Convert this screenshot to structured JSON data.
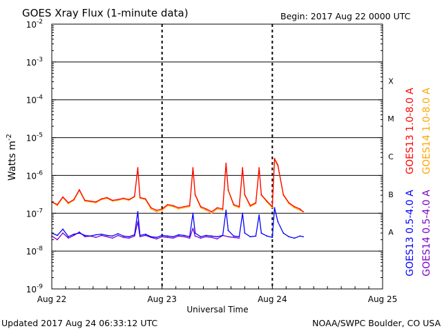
{
  "chart_data": {
    "type": "line",
    "title": "GOES Xray Flux (1-minute data)",
    "begin_text": "Begin:  2017 Aug 22 0000 UTC",
    "xlabel": "Universal Time",
    "ylabel_main": "Watts m",
    "ylabel_exp": "-2",
    "y_scale": "log",
    "ylim": [
      1e-09,
      0.01
    ],
    "xlim": [
      0,
      3
    ],
    "x_ticks": [
      {
        "value": 0,
        "label": "Aug 22"
      },
      {
        "value": 1,
        "label": "Aug 23"
      },
      {
        "value": 2,
        "label": "Aug 24"
      },
      {
        "value": 3,
        "label": "Aug 25"
      }
    ],
    "y_ticks": [
      {
        "exp": -9,
        "base": "10",
        "sup": "-9"
      },
      {
        "exp": -8,
        "base": "10",
        "sup": "-8"
      },
      {
        "exp": -7,
        "base": "10",
        "sup": "-7"
      },
      {
        "exp": -6,
        "base": "10",
        "sup": "-6"
      },
      {
        "exp": -5,
        "base": "10",
        "sup": "-5"
      },
      {
        "exp": -4,
        "base": "10",
        "sup": "-4"
      },
      {
        "exp": -3,
        "base": "10",
        "sup": "-3"
      },
      {
        "exp": -2,
        "base": "10",
        "sup": "-2"
      }
    ],
    "class_lines": [
      {
        "label": "A",
        "value": 1e-08
      },
      {
        "label": "B",
        "value": 1e-07
      },
      {
        "label": "C",
        "value": 1e-06
      },
      {
        "label": "M",
        "value": 1e-05
      },
      {
        "label": "X",
        "value": 0.0001
      }
    ],
    "extra_hlines": [
      0.001
    ],
    "day_lines": [
      1,
      2
    ],
    "legend": [
      {
        "text": "GOES13 1.0-8.0 A",
        "color": "#ff0000"
      },
      {
        "text": "GOES14 1.0-8.0 A",
        "color": "#ffa500"
      },
      {
        "text": "GOES13 0.5-4.0 A",
        "color": "#0000ff"
      },
      {
        "text": "GOES14 0.5-4.0 A",
        "color": "#7b00c8"
      }
    ],
    "series": [
      {
        "name": "GOES14 1.0-8.0 A",
        "color": "#ffa500",
        "x": [
          0,
          0.05,
          0.1,
          0.15,
          0.2,
          0.25,
          0.3,
          0.35,
          0.4,
          0.45,
          0.5,
          0.55,
          0.6,
          0.65,
          0.7,
          0.75,
          0.78,
          0.8,
          0.85,
          0.9,
          0.95,
          1.0,
          1.05,
          1.1,
          1.15,
          1.2,
          1.25,
          1.28,
          1.3,
          1.35,
          1.4,
          1.45,
          1.5,
          1.55,
          1.58,
          1.6,
          1.65,
          1.7,
          1.73,
          1.75,
          1.8,
          1.85,
          1.88,
          1.9,
          1.95,
          2.0,
          2.02,
          2.05,
          2.1,
          2.15,
          2.2,
          2.25,
          2.28
        ],
        "y": [
          2e-07,
          1.6e-07,
          2.6e-07,
          1.8e-07,
          2.2e-07,
          4e-07,
          2.1e-07,
          2e-07,
          1.9e-07,
          2.3e-07,
          2.5e-07,
          2.1e-07,
          2.2e-07,
          2.4e-07,
          2.2e-07,
          2.7e-07,
          1.5e-06,
          2.5e-07,
          2.3e-07,
          1.3e-07,
          1.1e-07,
          1.2e-07,
          1.6e-07,
          1.5e-07,
          1.3e-07,
          1.4e-07,
          1.5e-07,
          1.5e-06,
          3e-07,
          1.4e-07,
          1.2e-07,
          1e-07,
          1.3e-07,
          1.2e-07,
          2e-06,
          4e-07,
          1.6e-07,
          1.4e-07,
          1.5e-06,
          3e-07,
          1.5e-07,
          1.8e-07,
          1.5e-06,
          3e-07,
          2e-07,
          1.4e-07,
          2.5e-06,
          1.8e-06,
          3e-07,
          1.8e-07,
          1.4e-07,
          1.2e-07,
          1.1e-07
        ]
      },
      {
        "name": "GOES13 1.0-8.0 A",
        "color": "#ff0000",
        "x": [
          0,
          0.05,
          0.1,
          0.15,
          0.2,
          0.25,
          0.3,
          0.35,
          0.4,
          0.45,
          0.5,
          0.55,
          0.6,
          0.65,
          0.7,
          0.75,
          0.78,
          0.8,
          0.85,
          0.9,
          0.95,
          1.0,
          1.05,
          1.1,
          1.15,
          1.2,
          1.25,
          1.28,
          1.3,
          1.35,
          1.4,
          1.45,
          1.5,
          1.55,
          1.58,
          1.6,
          1.65,
          1.7,
          1.73,
          1.75,
          1.8,
          1.85,
          1.88,
          1.9,
          1.95,
          2.0,
          2.02,
          2.05,
          2.1,
          2.15,
          2.2,
          2.25,
          2.28
        ],
        "y": [
          2e-07,
          1.7e-07,
          2.7e-07,
          1.9e-07,
          2.3e-07,
          4.2e-07,
          2.2e-07,
          2.1e-07,
          2e-07,
          2.4e-07,
          2.6e-07,
          2.2e-07,
          2.3e-07,
          2.5e-07,
          2.3e-07,
          2.8e-07,
          1.6e-06,
          2.6e-07,
          2.4e-07,
          1.4e-07,
          1.2e-07,
          1.3e-07,
          1.7e-07,
          1.6e-07,
          1.4e-07,
          1.5e-07,
          1.6e-07,
          1.6e-06,
          3.1e-07,
          1.5e-07,
          1.3e-07,
          1.1e-07,
          1.4e-07,
          1.3e-07,
          2.1e-06,
          4.1e-07,
          1.7e-07,
          1.5e-07,
          1.6e-06,
          3.1e-07,
          1.6e-07,
          1.9e-07,
          1.6e-06,
          3.1e-07,
          2.1e-07,
          1.5e-07,
          2.8e-06,
          1.9e-06,
          3.1e-07,
          1.9e-07,
          1.5e-07,
          1.3e-07,
          1.1e-07
        ]
      },
      {
        "name": "GOES14 0.5-4.0 A",
        "color": "#7b00c8",
        "x": [
          0,
          0.05,
          0.1,
          0.15,
          0.2,
          0.25,
          0.3,
          0.35,
          0.4,
          0.45,
          0.5,
          0.55,
          0.6,
          0.65,
          0.7,
          0.75,
          0.78,
          0.8,
          0.85,
          0.9,
          0.95,
          1.0,
          1.05,
          1.1,
          1.15,
          1.2,
          1.25,
          1.28,
          1.3,
          1.35,
          1.4,
          1.45,
          1.5,
          1.55,
          1.6,
          1.65,
          1.7
        ],
        "y": [
          2.5e-08,
          2e-08,
          3e-08,
          2.2e-08,
          2.6e-08,
          3.2e-08,
          2.4e-08,
          2.5e-08,
          2.3e-08,
          2.6e-08,
          2.4e-08,
          2.2e-08,
          2.6e-08,
          2.3e-08,
          2.2e-08,
          2.5e-08,
          6e-08,
          2.4e-08,
          2.6e-08,
          2.3e-08,
          2.1e-08,
          2.4e-08,
          2.3e-08,
          2.2e-08,
          2.5e-08,
          2.4e-08,
          2.2e-08,
          4e-08,
          2.5e-08,
          2.2e-08,
          2.4e-08,
          2.3e-08,
          2.1e-08,
          2.6e-08,
          2.4e-08,
          2.3e-08,
          2.2e-08
        ]
      },
      {
        "name": "GOES13 0.5-4.0 A",
        "color": "#0000ff",
        "x": [
          0,
          0.05,
          0.1,
          0.15,
          0.2,
          0.25,
          0.3,
          0.35,
          0.4,
          0.45,
          0.5,
          0.55,
          0.6,
          0.65,
          0.7,
          0.75,
          0.78,
          0.8,
          0.85,
          0.9,
          0.95,
          1.0,
          1.05,
          1.1,
          1.15,
          1.2,
          1.25,
          1.28,
          1.3,
          1.35,
          1.4,
          1.45,
          1.5,
          1.55,
          1.58,
          1.6,
          1.65,
          1.7,
          1.73,
          1.75,
          1.8,
          1.85,
          1.88,
          1.9,
          1.95,
          2.0,
          2.02,
          2.05,
          2.1,
          2.15,
          2.2,
          2.25,
          2.28
        ],
        "y": [
          3e-08,
          2.6e-08,
          3.8e-08,
          2.4e-08,
          2.8e-08,
          3e-08,
          2.6e-08,
          2.5e-08,
          2.7e-08,
          2.8e-08,
          2.6e-08,
          2.5e-08,
          2.9e-08,
          2.5e-08,
          2.4e-08,
          2.7e-08,
          1.1e-07,
          2.6e-08,
          2.8e-08,
          2.4e-08,
          2.3e-08,
          2.6e-08,
          2.5e-08,
          2.4e-08,
          2.7e-08,
          2.6e-08,
          2.4e-08,
          1e-07,
          3e-08,
          2.4e-08,
          2.6e-08,
          2.5e-08,
          2.4e-08,
          2.6e-08,
          1.2e-07,
          3.5e-08,
          2.5e-08,
          2.4e-08,
          1e-07,
          3e-08,
          2.4e-08,
          2.5e-08,
          9e-08,
          3e-08,
          2.5e-08,
          2.3e-08,
          1.4e-07,
          6e-08,
          3e-08,
          2.4e-08,
          2.2e-08,
          2.5e-08,
          2.4e-08
        ]
      }
    ]
  },
  "footer": {
    "updated": "Updated 2017 Aug 24 06:33:12 UTC",
    "credit": "NOAA/SWPC Boulder, CO USA"
  },
  "colors": {
    "goes13_long": "#ff0000",
    "goes14_long": "#ffa500",
    "goes13_short": "#0000ff",
    "goes14_short": "#7b00c8"
  }
}
